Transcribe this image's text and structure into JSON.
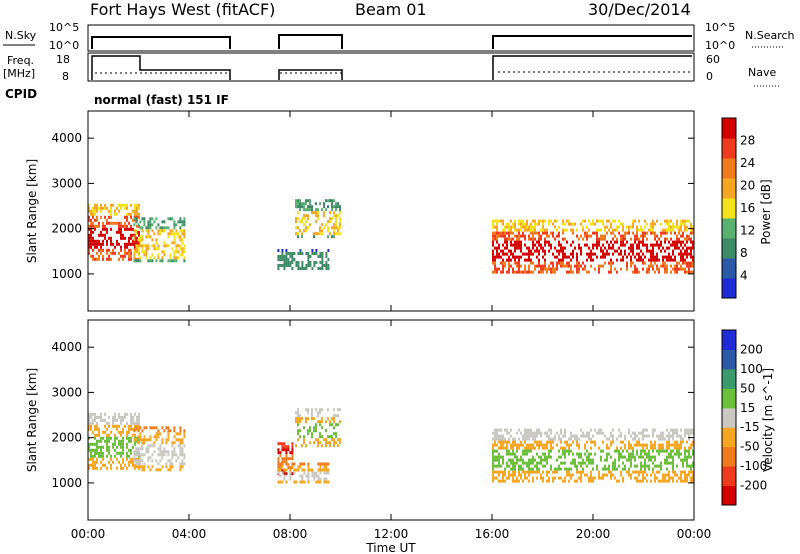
{
  "header": {
    "station": "Fort Hays West (fitACF)",
    "beam": "Beam 01",
    "date": "30/Dec/2014"
  },
  "strip_labels": {
    "nsky": "N.Sky",
    "nsearch": "N.Search",
    "freq_line1": "Freq.",
    "freq_line2": "[MHz]",
    "nave": "Nave",
    "cpid": "CPID",
    "cpid_value": "normal (fast) 151 IF",
    "noise_left_ticks": [
      "10^5",
      "10^0"
    ],
    "noise_right_ticks": [
      "10^5",
      "10^0"
    ],
    "freq_left_ticks": [
      "18",
      "8"
    ],
    "freq_right_ticks": [
      "60",
      "0"
    ]
  },
  "colors": {
    "power_scale": [
      "#1f2bd6",
      "#2a5aa8",
      "#3f8a66",
      "#5ab070",
      "#f2e21a",
      "#f5a623",
      "#f07a1e",
      "#ef3a1e",
      "#d40000"
    ],
    "velocity_scale": [
      "#d40000",
      "#ef3a1e",
      "#f07a1e",
      "#f5a623",
      "#c8c8c0",
      "#6bbf3a",
      "#3a9a6b",
      "#2a5aa8",
      "#1f2bd6"
    ]
  },
  "chart_data": [
    {
      "type": "heatmap",
      "title": "Power",
      "xlabel": "",
      "ylabel": "Slant Range [km]",
      "x_ticks": [
        "00:00",
        "04:00",
        "08:00",
        "12:00",
        "16:00",
        "20:00",
        "00:00"
      ],
      "x_range_hours": [
        0,
        24
      ],
      "y_ticks": [
        1000,
        2000,
        3000,
        4000
      ],
      "ylim": [
        180,
        4600
      ],
      "colorbar": {
        "label": "Power [dB]",
        "ticks": [
          4,
          8,
          12,
          16,
          20,
          24,
          28
        ],
        "range": [
          0,
          32
        ]
      },
      "data_coverage_hours": [
        [
          0,
          5.5
        ],
        [
          7.5,
          10
        ],
        [
          16,
          24
        ]
      ],
      "blobs": [
        {
          "t0": 0.0,
          "t1": 2.0,
          "r0": 1350,
          "r1": 2550,
          "level": "high"
        },
        {
          "t0": 1.8,
          "t1": 3.8,
          "r0": 1300,
          "r1": 2250,
          "level": "mid"
        },
        {
          "t0": 7.5,
          "t1": 9.5,
          "r0": 1100,
          "r1": 1550,
          "level": "low"
        },
        {
          "t0": 8.2,
          "t1": 10.0,
          "r0": 1850,
          "r1": 2650,
          "level": "mid"
        },
        {
          "t0": 16.0,
          "t1": 24.0,
          "r0": 1050,
          "r1": 2200,
          "level": "high"
        }
      ]
    },
    {
      "type": "heatmap",
      "title": "Velocity",
      "xlabel": "Time UT",
      "ylabel": "Slant Range [km]",
      "x_ticks": [
        "00:00",
        "04:00",
        "08:00",
        "12:00",
        "16:00",
        "20:00",
        "00:00"
      ],
      "x_range_hours": [
        0,
        24
      ],
      "y_ticks": [
        1000,
        2000,
        3000,
        4000
      ],
      "ylim": [
        180,
        4600
      ],
      "colorbar": {
        "label": "Velocity [m s^-1]",
        "ticks": [
          -200,
          -100,
          -50,
          -15,
          15,
          50,
          100,
          200
        ],
        "range": [
          -250,
          250
        ]
      },
      "blobs": [
        {
          "t0": 0.0,
          "t1": 2.0,
          "r0": 1350,
          "r1": 2550,
          "level": "gray"
        },
        {
          "t0": 1.8,
          "t1": 3.8,
          "r0": 1300,
          "r1": 2250,
          "level": "orange"
        },
        {
          "t0": 7.5,
          "t1": 8.1,
          "r0": 1200,
          "r1": 1900,
          "level": "red"
        },
        {
          "t0": 7.5,
          "t1": 9.5,
          "r0": 1050,
          "r1": 1450,
          "level": "orange"
        },
        {
          "t0": 8.2,
          "t1": 10.0,
          "r0": 1850,
          "r1": 2650,
          "level": "gray"
        },
        {
          "t0": 16.0,
          "t1": 24.0,
          "r0": 1050,
          "r1": 2200,
          "level": "gray"
        }
      ]
    }
  ]
}
